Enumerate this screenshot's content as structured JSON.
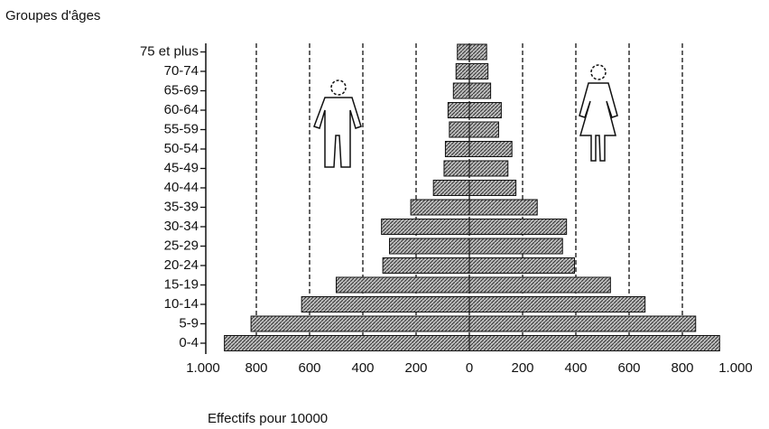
{
  "chart_data": {
    "type": "pyramid",
    "title": "Groupes d'âges",
    "x_label": "Effectifs pour 10000",
    "categories": [
      "0-4",
      "5-9",
      "10-14",
      "15-19",
      "20-24",
      "25-29",
      "30-34",
      "35-39",
      "40-44",
      "45-49",
      "50-54",
      "55-59",
      "60-64",
      "65-69",
      "70-74",
      "75 et plus"
    ],
    "series": [
      {
        "side": "left",
        "color": "#8a8a8a",
        "values": [
          920,
          820,
          630,
          500,
          325,
          300,
          330,
          220,
          135,
          95,
          90,
          75,
          80,
          60,
          50,
          45
        ]
      },
      {
        "side": "right",
        "color": "#8a8a8a",
        "values": [
          940,
          850,
          660,
          530,
          395,
          350,
          365,
          255,
          175,
          145,
          160,
          110,
          120,
          80,
          70,
          65
        ]
      }
    ],
    "xlim": [
      -1000,
      1000
    ],
    "xticks": [
      {
        "value": -1000,
        "label": "1.000"
      },
      {
        "value": -800,
        "label": "800"
      },
      {
        "value": -600,
        "label": "600"
      },
      {
        "value": -400,
        "label": "400"
      },
      {
        "value": -200,
        "label": "200"
      },
      0,
      200,
      400,
      600,
      800,
      {
        "value": 1000,
        "label": "1.000"
      }
    ],
    "grid": true
  }
}
